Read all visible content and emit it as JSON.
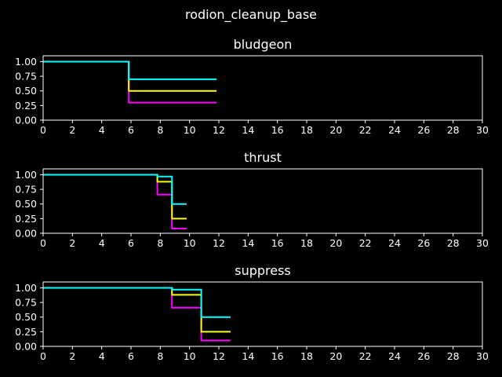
{
  "figure": {
    "title": "rodion_cleanup_base",
    "background": "#000000",
    "foreground": "#ffffff"
  },
  "chart_data": [
    {
      "type": "line",
      "title": "bludgeon",
      "xlim": [
        0,
        30
      ],
      "ylim": [
        0,
        1.1
      ],
      "xticks": [
        0,
        2,
        4,
        6,
        8,
        10,
        12,
        14,
        16,
        18,
        20,
        22,
        24,
        26,
        28,
        30
      ],
      "yticks": [
        "0.00",
        "0.25",
        "0.50",
        "0.75",
        "1.00"
      ],
      "step": "post",
      "series": [
        {
          "color": "#ff00ff",
          "x": [
            0,
            5.85,
            11.85
          ],
          "y": [
            1.0,
            0.3,
            0.3
          ]
        },
        {
          "color": "#ffff00",
          "x": [
            0,
            5.85,
            11.85
          ],
          "y": [
            1.0,
            0.5,
            0.5
          ]
        },
        {
          "color": "#00ffff",
          "x": [
            0,
            5.85,
            11.85
          ],
          "y": [
            1.0,
            0.7,
            0.7
          ]
        }
      ]
    },
    {
      "type": "line",
      "title": "thrust",
      "xlim": [
        0,
        30
      ],
      "ylim": [
        0,
        1.1
      ],
      "xticks": [
        0,
        2,
        4,
        6,
        8,
        10,
        12,
        14,
        16,
        18,
        20,
        22,
        24,
        26,
        28,
        30
      ],
      "yticks": [
        "0.00",
        "0.25",
        "0.50",
        "0.75",
        "1.00"
      ],
      "step": "post",
      "series": [
        {
          "color": "#ff00ff",
          "x": [
            0,
            7.8,
            8.8,
            9.8
          ],
          "y": [
            1.0,
            0.66,
            0.08,
            0.08
          ]
        },
        {
          "color": "#ffff00",
          "x": [
            0,
            7.8,
            8.8,
            9.8
          ],
          "y": [
            1.0,
            0.88,
            0.25,
            0.25
          ]
        },
        {
          "color": "#00ffff",
          "x": [
            0,
            7.8,
            8.8,
            9.8
          ],
          "y": [
            1.0,
            0.97,
            0.5,
            0.5
          ]
        }
      ]
    },
    {
      "type": "line",
      "title": "suppress",
      "xlim": [
        0,
        30
      ],
      "ylim": [
        0,
        1.1
      ],
      "xticks": [
        0,
        2,
        4,
        6,
        8,
        10,
        12,
        14,
        16,
        18,
        20,
        22,
        24,
        26,
        28,
        30
      ],
      "yticks": [
        "0.00",
        "0.25",
        "0.50",
        "0.75",
        "1.00"
      ],
      "step": "post",
      "series": [
        {
          "color": "#ff00ff",
          "x": [
            0,
            8.8,
            10.8,
            12.8
          ],
          "y": [
            1.0,
            0.66,
            0.1,
            0.1
          ]
        },
        {
          "color": "#ffff00",
          "x": [
            0,
            8.8,
            10.8,
            12.8
          ],
          "y": [
            1.0,
            0.88,
            0.25,
            0.25
          ]
        },
        {
          "color": "#00ffff",
          "x": [
            0,
            8.8,
            10.8,
            12.8
          ],
          "y": [
            1.0,
            0.97,
            0.5,
            0.5
          ]
        }
      ]
    }
  ]
}
